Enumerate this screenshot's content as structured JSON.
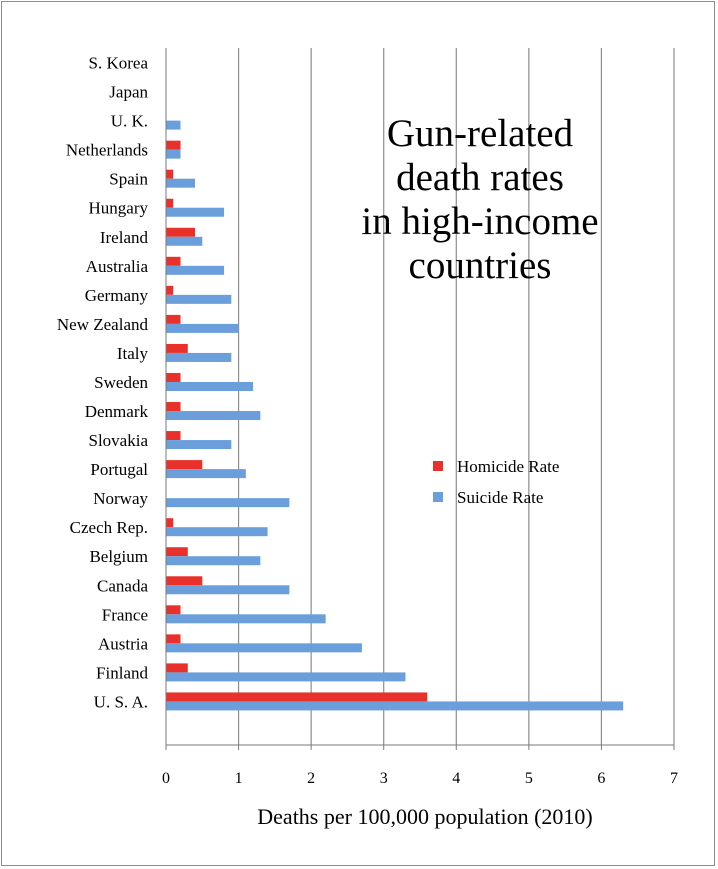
{
  "chart_data": {
    "type": "bar",
    "orientation": "horizontal",
    "title_lines": [
      "Gun-related",
      "death rates",
      "in high-income",
      "countries"
    ],
    "xlabel": "Deaths per 100,000 population (2010)",
    "ylabel": "",
    "xlim": [
      0,
      7
    ],
    "xticks": [
      "0",
      "1",
      "2",
      "3",
      "4",
      "5",
      "6",
      "7"
    ],
    "grid": true,
    "legend_position": "right-middle",
    "categories": [
      "S. Korea",
      "Japan",
      "U. K.",
      "Netherlands",
      "Spain",
      "Hungary",
      "Ireland",
      "Australia",
      "Germany",
      "New Zealand",
      "Italy",
      "Sweden",
      "Denmark",
      "Slovakia",
      "Portugal",
      "Norway",
      "Czech Rep.",
      "Belgium",
      "Canada",
      "France",
      "Austria",
      "Finland",
      "U. S. A."
    ],
    "series": [
      {
        "name": "Homicide Rate",
        "color": "#e8312a",
        "values": [
          0,
          0,
          0,
          0.2,
          0.1,
          0.1,
          0.4,
          0.2,
          0.1,
          0.2,
          0.3,
          0.2,
          0.2,
          0.2,
          0.5,
          0,
          0.1,
          0.3,
          0.5,
          0.2,
          0.2,
          0.3,
          3.6
        ]
      },
      {
        "name": "Suicide Rate",
        "color": "#6a9fdb",
        "values": [
          0,
          0,
          0.2,
          0.2,
          0.4,
          0.8,
          0.5,
          0.8,
          0.9,
          1.0,
          0.9,
          1.2,
          1.3,
          0.9,
          1.1,
          1.7,
          1.4,
          1.3,
          1.7,
          2.2,
          2.7,
          3.3,
          6.3
        ]
      }
    ]
  },
  "colors": {
    "gridline": "#8c8c8c",
    "axis": "#7a7a7a"
  }
}
